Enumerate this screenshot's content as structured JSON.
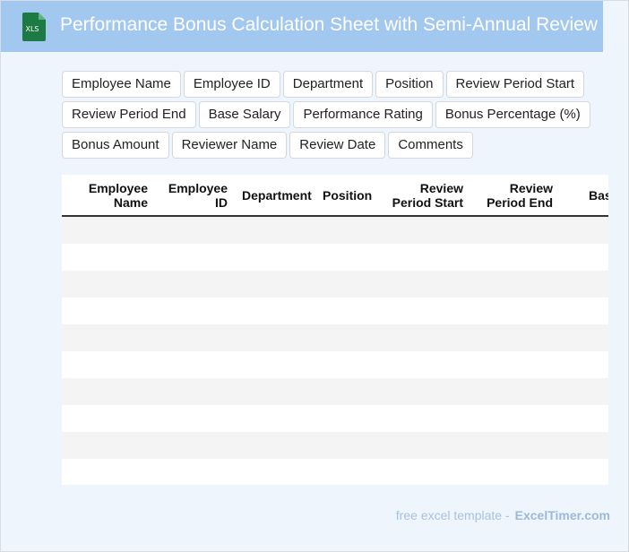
{
  "header": {
    "title": "Performance Bonus Calculation Sheet with Semi-Annual Review",
    "icon": "XLS"
  },
  "fields": [
    "Employee Name",
    "Employee ID",
    "Department",
    "Position",
    "Review Period Start",
    "Review Period End",
    "Base Salary",
    "Performance Rating",
    "Bonus Percentage (%)",
    "Bonus Amount",
    "Reviewer Name",
    "Review Date",
    "Comments"
  ],
  "table": {
    "columns": [
      "Employee Name",
      "Employee ID",
      "Department",
      "Position",
      "Review Period Start",
      "Review Period End",
      "Base Salary"
    ]
  },
  "footer": {
    "text": "free excel template -",
    "link": "ExcelTimer.com"
  }
}
